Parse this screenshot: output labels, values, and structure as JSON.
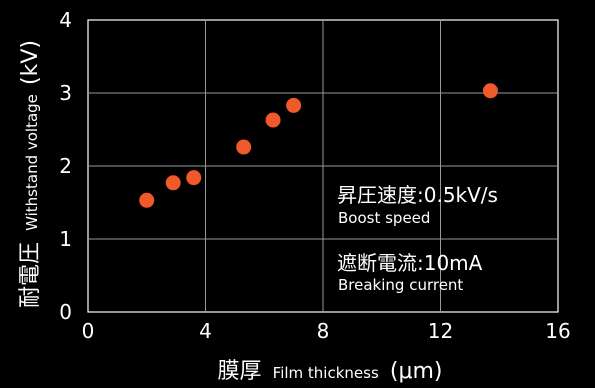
{
  "chart_data": {
    "type": "scatter",
    "xlabel": {
      "cjk": "膜厚",
      "latin": "Film thickness",
      "unit": "(μm)"
    },
    "ylabel": {
      "cjk": "耐電圧",
      "latin": "Withstand voltage",
      "unit": "(kV)"
    },
    "xlim": [
      0,
      16
    ],
    "ylim": [
      0,
      4
    ],
    "xticks": [
      0,
      4,
      8,
      12,
      16
    ],
    "yticks": [
      0,
      1,
      2,
      3,
      4
    ],
    "x_tick_labels": [
      "0",
      "4",
      "8",
      "12",
      "16"
    ],
    "y_tick_labels": [
      "0",
      "1",
      "2",
      "3",
      "4"
    ],
    "grid": true,
    "point_color": "#f0592a",
    "background_color": "#000000",
    "points": [
      {
        "x": 2.0,
        "y": 1.53
      },
      {
        "x": 2.9,
        "y": 1.77
      },
      {
        "x": 3.6,
        "y": 1.84
      },
      {
        "x": 5.3,
        "y": 2.26
      },
      {
        "x": 6.3,
        "y": 2.63
      },
      {
        "x": 7.0,
        "y": 2.83
      },
      {
        "x": 13.7,
        "y": 3.03
      }
    ],
    "annotations": [
      {
        "main": "昇圧速度:0.5kV/s",
        "sub": "Boost speed"
      },
      {
        "main": "遮断電流:10mA",
        "sub": "Breaking current"
      }
    ]
  }
}
